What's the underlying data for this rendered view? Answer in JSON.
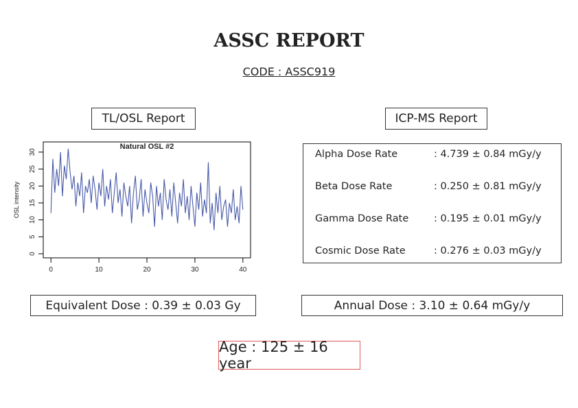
{
  "header": {
    "title": "ASSC REPORT",
    "code": "CODE : ASSC919"
  },
  "tl_osl": {
    "heading": "TL/OSL Report",
    "equivalent_dose": "Equivalent Dose : 0.39 ± 0.03 Gy"
  },
  "icp_ms": {
    "heading": "ICP-MS Report",
    "rows": [
      [
        "Alpha Dose Rate",
        ": 4.739 ± 0.84 mGy/y"
      ],
      [
        "Beta Dose Rate",
        ": 0.250 ± 0.81 mGy/y"
      ],
      [
        "Gamma Dose Rate",
        ": 0.195 ± 0.01 mGy/y"
      ],
      [
        "Cosmic Dose Rate",
        ": 0.276 ± 0.03 mGy/y"
      ]
    ],
    "annual_dose": "Annual Dose : 3.10 ± 0.64 mGy/y"
  },
  "age": "Age : 125 ± 16 year",
  "chart_data": {
    "type": "line",
    "title": "Natural OSL #2",
    "y_label": "OSL intensity",
    "color": "#4759a8",
    "x": [
      0,
      0.4,
      0.8,
      1.2,
      1.6,
      2,
      2.4,
      2.8,
      3.2,
      3.6,
      4,
      4.4,
      4.8,
      5.2,
      5.6,
      6,
      6.4,
      6.8,
      7.2,
      7.6,
      8,
      8.4,
      8.8,
      9.2,
      9.6,
      10,
      10.4,
      10.8,
      11.2,
      11.6,
      12,
      12.4,
      12.8,
      13.2,
      13.6,
      14,
      14.4,
      14.8,
      15.2,
      15.6,
      16,
      16.4,
      16.8,
      17.2,
      17.6,
      18,
      18.4,
      18.8,
      19.2,
      19.6,
      20,
      20.4,
      20.8,
      21.2,
      21.6,
      22,
      22.4,
      22.8,
      23.2,
      23.6,
      24,
      24.4,
      24.8,
      25.2,
      25.6,
      26,
      26.4,
      26.8,
      27.2,
      27.6,
      28,
      28.4,
      28.8,
      29.2,
      29.6,
      30,
      30.4,
      30.8,
      31.2,
      31.6,
      32,
      32.4,
      32.8,
      33.2,
      33.6,
      34,
      34.4,
      34.8,
      35.2,
      35.6,
      36,
      36.4,
      36.8,
      37.2,
      37.6,
      38,
      38.4,
      38.8,
      39.2,
      39.6,
      40
    ],
    "values": [
      12,
      28,
      18,
      25,
      20,
      30,
      17,
      26,
      22,
      31,
      24,
      19,
      23,
      14,
      21,
      17,
      24,
      12,
      20,
      18,
      22,
      15,
      23,
      19,
      13,
      21,
      17,
      25,
      14,
      20,
      16,
      22,
      12,
      18,
      24,
      15,
      19,
      11,
      21,
      17,
      14,
      20,
      9,
      18,
      23,
      13,
      16,
      22,
      11,
      19,
      15,
      12,
      21,
      17,
      8,
      20,
      14,
      18,
      10,
      22,
      16,
      13,
      19,
      11,
      21,
      15,
      9,
      18,
      14,
      22,
      12,
      17,
      10,
      20,
      14,
      8,
      18,
      13,
      21,
      11,
      16,
      12,
      27,
      9,
      15,
      7,
      18,
      12,
      20,
      10,
      14,
      16,
      8,
      15,
      12,
      19,
      10,
      14,
      9,
      20,
      13
    ],
    "xlim": [
      -1.6,
      41.6
    ],
    "ylim": [
      -1.2,
      33
    ],
    "xticks": [
      0,
      10,
      20,
      30,
      40
    ],
    "yticks": [
      0,
      5,
      10,
      15,
      20,
      25,
      30
    ]
  }
}
